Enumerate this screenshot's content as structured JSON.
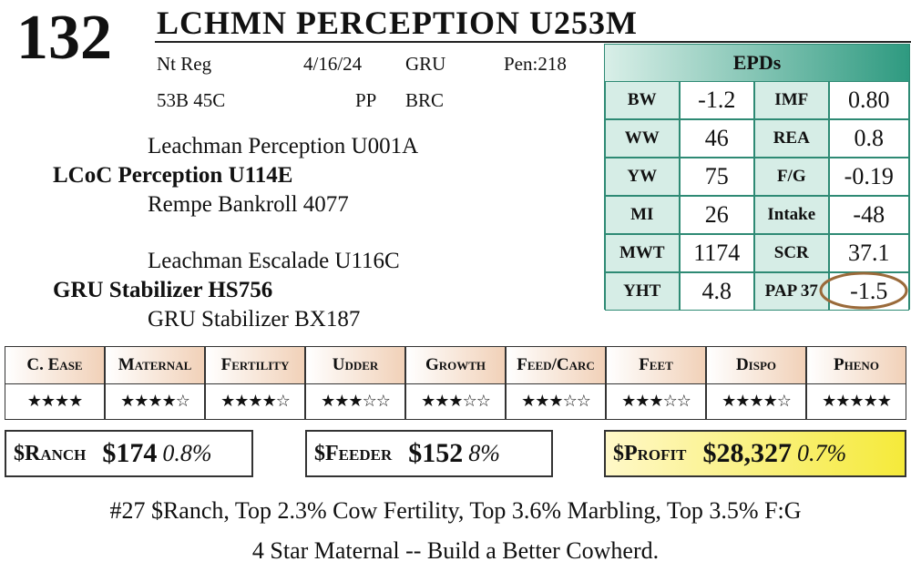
{
  "lot": "132",
  "title": "LCHMN PERCEPTION U253M",
  "info": [
    [
      "Nt Reg",
      "4/16/24",
      "GRU",
      "Pen:218"
    ],
    [
      "53B 45C",
      "PP",
      "BRC"
    ]
  ],
  "pedigree": {
    "sire_sire": "Leachman Perception U001A",
    "sire": "LCoC Perception U114E",
    "sire_dam": "Rempe Bankroll 4077",
    "dam_sire": "Leachman Escalade U116C",
    "dam": "GRU Stabilizer HS756",
    "dam_dam": "GRU Stabilizer BX187"
  },
  "epds": {
    "title": "EPDs",
    "rows": [
      [
        "BW",
        "-1.2",
        "IMF",
        "0.80"
      ],
      [
        "WW",
        "46",
        "REA",
        "0.8"
      ],
      [
        "YW",
        "75",
        "F/G",
        "-0.19"
      ],
      [
        "MI",
        "26",
        "Intake",
        "-48"
      ],
      [
        "MWT",
        "1174",
        "SCR",
        "37.1"
      ],
      [
        "YHT",
        "4.8",
        "PAP 37",
        "-1.5"
      ]
    ]
  },
  "traits": [
    {
      "name": "C. Ease",
      "stars": "★★★★"
    },
    {
      "name": "Maternal",
      "stars": "★★★★☆"
    },
    {
      "name": "Fertility",
      "stars": "★★★★☆"
    },
    {
      "name": "Udder",
      "stars": "★★★☆☆"
    },
    {
      "name": "Growth",
      "stars": "★★★☆☆"
    },
    {
      "name": "Feed/Carc",
      "stars": "★★★☆☆"
    },
    {
      "name": "Feet",
      "stars": "★★★☆☆"
    },
    {
      "name": "Dispo",
      "stars": "★★★★☆"
    },
    {
      "name": "Pheno",
      "stars": "★★★★★"
    }
  ],
  "indexes": [
    {
      "name": "$Ranch",
      "value": "$174",
      "pct": "0.8%"
    },
    {
      "name": "$Feeder",
      "value": "$152",
      "pct": "8%"
    },
    {
      "name": "$Profit",
      "value": "$28,327",
      "pct": "0.7%"
    }
  ],
  "notes": [
    "#27 $Ranch, Top 2.3% Cow Fertility, Top 3.6% Marbling, Top 3.5% F:G",
    "4 Star Maternal -- Build a Better Cowherd."
  ]
}
